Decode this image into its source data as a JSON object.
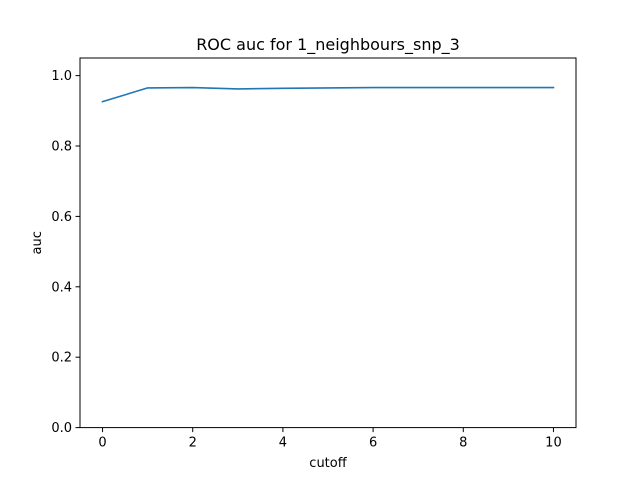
{
  "chart_data": {
    "type": "line",
    "title": "ROC auc for 1_neighbours_snp_3",
    "xlabel": "cutoff",
    "ylabel": "auc",
    "xlim": [
      -0.5,
      10.5
    ],
    "ylim": [
      0.0,
      1.05
    ],
    "xticks": [
      0,
      2,
      4,
      6,
      8,
      10
    ],
    "yticks": [
      0.0,
      0.2,
      0.4,
      0.6,
      0.8,
      1.0
    ],
    "xtick_labels": [
      "0",
      "2",
      "4",
      "6",
      "8",
      "10"
    ],
    "ytick_labels": [
      "0.0",
      "0.2",
      "0.4",
      "0.6",
      "0.8",
      "1.0"
    ],
    "grid": false,
    "series": [
      {
        "color": "#1f77b4",
        "x": [
          0,
          1,
          2,
          3,
          4,
          5,
          6,
          7,
          8,
          9,
          10
        ],
        "y": [
          0.926,
          0.965,
          0.966,
          0.962,
          0.964,
          0.965,
          0.966,
          0.966,
          0.966,
          0.966,
          0.966
        ]
      }
    ]
  }
}
